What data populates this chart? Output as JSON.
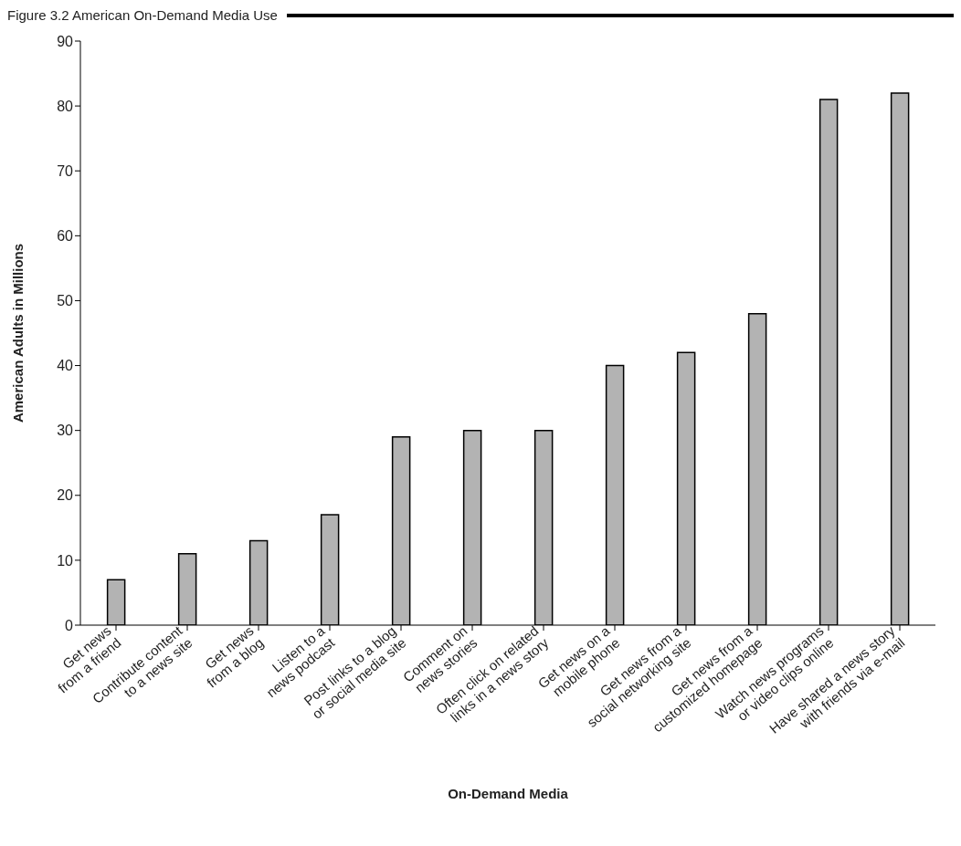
{
  "chart_data": {
    "type": "bar",
    "title": "Figure 3.2 American On-Demand Media Use",
    "xlabel": "On-Demand Media",
    "ylabel": "American Adults in Millions",
    "categories": [
      "Get news from a friend",
      "Contribute content to a news site",
      "Get news from a blog",
      "Listen to a news podcast",
      "Post links to a blog or social media site",
      "Comment on news stories",
      "Often click on related links in a news story",
      "Get news on a mobile phone",
      "Get news from a social networking site",
      "Get news from a customized homepage",
      "Watch news programs or video clips online",
      "Have shared a news story with friends via e-mail"
    ],
    "values": [
      7,
      11,
      13,
      17,
      29,
      30,
      30,
      40,
      42,
      48,
      81,
      82
    ],
    "color": "#b3b3b3",
    "ylim": [
      0,
      90
    ],
    "yticks": [
      0,
      10,
      20,
      30,
      40,
      50,
      60,
      70,
      80,
      90
    ],
    "grid": false,
    "legend": false
  }
}
